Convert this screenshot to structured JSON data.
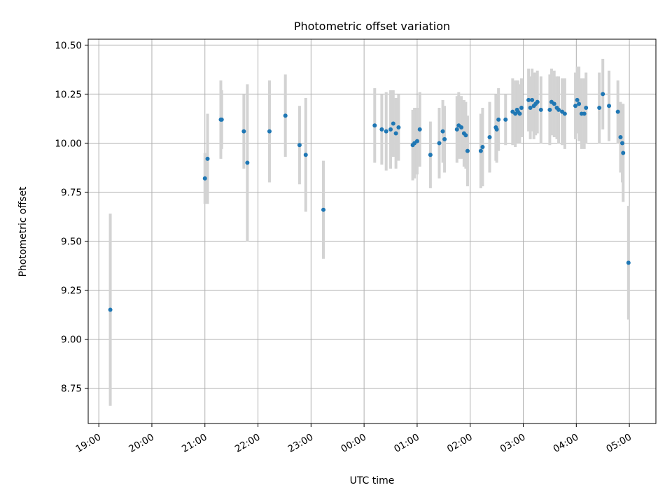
{
  "chart_data": {
    "type": "scatter",
    "title": "Photometric offset variation",
    "xlabel": "UTC time",
    "ylabel": "Photometric offset",
    "x_unit": "UTC time (HH:MM); times after midnight are on the following day",
    "xlim": [
      "18:48",
      "05:30"
    ],
    "ylim": [
      8.57,
      10.53
    ],
    "x_ticks": [
      "19:00",
      "20:00",
      "21:00",
      "22:00",
      "23:00",
      "00:00",
      "01:00",
      "02:00",
      "03:00",
      "04:00",
      "05:00"
    ],
    "y_ticks": [
      "8.75",
      "9.00",
      "9.25",
      "9.50",
      "9.75",
      "10.00",
      "10.25",
      "10.50"
    ],
    "grid": true,
    "marker_color": "#1f77b4",
    "errorbar_color": "#d3d3d3",
    "series": [
      {
        "x": [
          "19:13",
          "21:00",
          "21:03",
          "21:18",
          "21:19",
          "21:44",
          "21:48",
          "22:13",
          "22:31",
          "22:47",
          "22:54",
          "23:14",
          "00:12",
          "00:20",
          "00:25",
          "00:30",
          "00:33",
          "00:36",
          "00:39",
          "00:55",
          "00:57",
          "01:00",
          "01:03",
          "01:15",
          "01:25",
          "01:29",
          "01:31",
          "01:45",
          "01:47",
          "01:50",
          "01:53",
          "01:55",
          "01:57",
          "02:12",
          "02:14",
          "02:22",
          "02:29",
          "02:30",
          "02:32",
          "02:40",
          "02:48",
          "02:51",
          "02:53",
          "02:54",
          "02:56",
          "02:58",
          "03:06",
          "03:08",
          "03:10",
          "03:12",
          "03:14",
          "03:16",
          "03:20",
          "03:30",
          "03:32",
          "03:35",
          "03:38",
          "03:40",
          "03:44",
          "03:47",
          "03:59",
          "04:01",
          "04:03",
          "04:06",
          "04:09",
          "04:11",
          "04:26",
          "04:30",
          "04:37",
          "04:47",
          "04:50",
          "04:52",
          "04:53",
          "04:59"
        ],
        "y": [
          9.15,
          9.82,
          9.92,
          10.12,
          10.12,
          10.06,
          9.9,
          10.06,
          10.14,
          9.99,
          9.94,
          9.66,
          10.09,
          10.07,
          10.06,
          10.07,
          10.1,
          10.05,
          10.08,
          9.99,
          10.0,
          10.01,
          10.07,
          9.94,
          10.0,
          10.06,
          10.02,
          10.07,
          10.09,
          10.08,
          10.05,
          10.04,
          9.96,
          9.96,
          9.98,
          10.03,
          10.08,
          10.07,
          10.12,
          10.12,
          10.16,
          10.15,
          10.17,
          10.16,
          10.15,
          10.18,
          10.22,
          10.18,
          10.22,
          10.19,
          10.2,
          10.21,
          10.17,
          10.17,
          10.21,
          10.2,
          10.18,
          10.17,
          10.16,
          10.15,
          10.19,
          10.22,
          10.2,
          10.15,
          10.15,
          10.18,
          10.18,
          10.25,
          10.19,
          10.16,
          10.03,
          10.0,
          9.95,
          9.39
        ],
        "yerr": [
          0.49,
          0.13,
          0.23,
          0.2,
          0.15,
          0.19,
          0.4,
          0.26,
          0.21,
          0.2,
          0.29,
          0.25,
          0.19,
          0.18,
          0.2,
          0.2,
          0.17,
          0.18,
          0.17,
          0.18,
          0.18,
          0.17,
          0.19,
          0.17,
          0.18,
          0.16,
          0.17,
          0.17,
          0.17,
          0.16,
          0.17,
          0.17,
          0.18,
          0.19,
          0.2,
          0.18,
          0.17,
          0.17,
          0.16,
          0.13,
          0.17,
          0.17,
          0.15,
          0.16,
          0.15,
          0.15,
          0.16,
          0.16,
          0.16,
          0.17,
          0.16,
          0.16,
          0.17,
          0.18,
          0.17,
          0.17,
          0.16,
          0.17,
          0.17,
          0.18,
          0.17,
          0.17,
          0.19,
          0.18,
          0.18,
          0.18,
          0.18,
          0.18,
          0.18,
          0.16,
          0.18,
          0.2,
          0.25,
          0.29
        ]
      }
    ]
  }
}
